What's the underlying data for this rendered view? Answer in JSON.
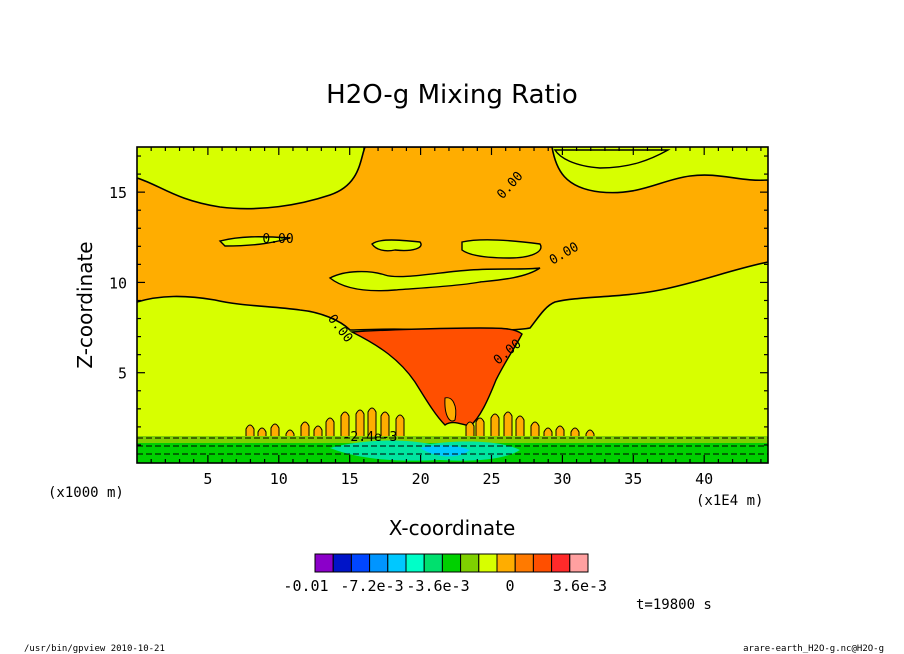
{
  "chart_data": {
    "type": "contour",
    "title": "H2O-g Mixing Ratio",
    "xlabel": "X-coordinate",
    "ylabel": "Z-coordinate",
    "x_unit_left": "(x1000 m)",
    "x_unit_right": "(x1E4 m)",
    "xlim": [
      0,
      44.5
    ],
    "ylim": [
      0,
      17.5
    ],
    "x_ticks": [
      5,
      10,
      15,
      20,
      25,
      30,
      35,
      40
    ],
    "y_ticks": [
      5,
      10,
      15
    ],
    "contour_labels": [
      "0.00",
      "0.00",
      "0.00",
      "0.00",
      "0.00",
      "-2.4e-3"
    ],
    "regions": [
      {
        "level": "background",
        "color": "#d7ff00"
      },
      {
        "level": "upper band",
        "color": "#ffad00"
      },
      {
        "level": "core maximum",
        "color": "#ff4f00"
      },
      {
        "level": "surface negative",
        "color": "#00e5a0"
      }
    ],
    "colorbar": {
      "colors": [
        "#8b00c9",
        "#0014c8",
        "#0046ff",
        "#0095ff",
        "#00c8ff",
        "#00ffc8",
        "#00e06e",
        "#00d000",
        "#7fd000",
        "#d7ff00",
        "#ffad00",
        "#ff7a00",
        "#ff4f00",
        "#ff2a2a",
        "#ffa0a0"
      ],
      "tick_labels": [
        "-0.01",
        "-7.2e-3",
        "-3.6e-3",
        "0",
        "3.6e-3"
      ]
    },
    "time_label": "t=19800 s"
  },
  "footer": {
    "left": "/usr/bin/gpview  2010-10-21",
    "right": "arare-earth_H2O-g.nc@H2O-g"
  }
}
